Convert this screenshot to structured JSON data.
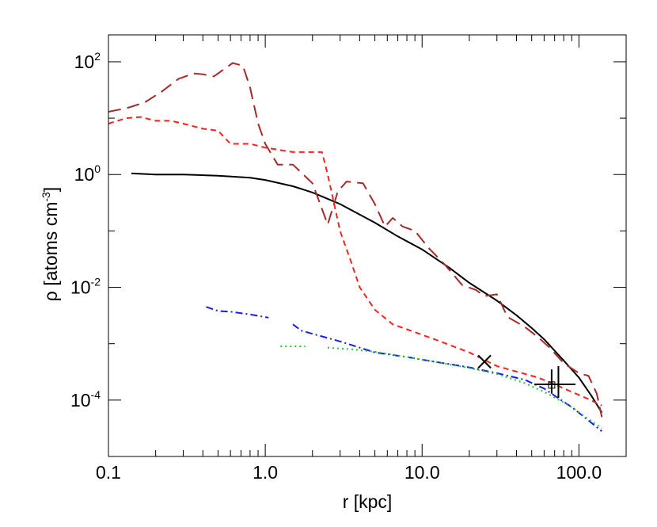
{
  "chart_data": {
    "type": "line",
    "xscale": "log",
    "yscale": "log",
    "xlim": [
      0.1,
      200
    ],
    "ylim": [
      1e-05,
      300
    ],
    "grid": false,
    "xlabel": "r [kpc]",
    "ylabel": {
      "base": "ρ [atoms cm",
      "sup": "-3",
      "end": "]"
    },
    "xticks": [
      {
        "value": 0.1,
        "label": "0.1"
      },
      {
        "value": 1,
        "label": "1.0"
      },
      {
        "value": 10,
        "label": "10.0"
      },
      {
        "value": 100,
        "label": "100.0"
      }
    ],
    "yticks": [
      {
        "value": 0.0001,
        "base": "10",
        "sup": "-4"
      },
      {
        "value": 0.01,
        "base": "10",
        "sup": "-2"
      },
      {
        "value": 1,
        "base": "10",
        "sup": "0"
      },
      {
        "value": 100,
        "base": "10",
        "sup": "2"
      }
    ],
    "series": [
      {
        "style": "solid",
        "color": "#000000",
        "width": 2,
        "segments": [
          [
            [
              0.14,
              1.05
            ],
            [
              0.2,
              1.0
            ],
            [
              0.25,
              1.0
            ],
            [
              0.3,
              1.0
            ],
            [
              0.5,
              0.95
            ],
            [
              0.8,
              0.88
            ],
            [
              1.0,
              0.8
            ],
            [
              1.5,
              0.62
            ],
            [
              2.0,
              0.48
            ],
            [
              3.0,
              0.3
            ],
            [
              5.0,
              0.14
            ],
            [
              7.0,
              0.08
            ],
            [
              10.0,
              0.047
            ],
            [
              15.0,
              0.022
            ],
            [
              20.0,
              0.012
            ],
            [
              30.0,
              0.0058
            ],
            [
              40.0,
              0.0032
            ],
            [
              50.0,
              0.0019
            ],
            [
              60.0,
              0.0012
            ],
            [
              70.0,
              0.00075
            ],
            [
              80.0,
              0.0005
            ],
            [
              100.0,
              0.00025
            ],
            [
              120.0,
              0.00012
            ],
            [
              140.0,
              6e-05
            ]
          ]
        ]
      },
      {
        "style": "longdash",
        "color": "#a52a2a",
        "width": 2,
        "segments": [
          [
            [
              0.1,
              13
            ],
            [
              0.13,
              15
            ],
            [
              0.17,
              19
            ],
            [
              0.22,
              30
            ],
            [
              0.28,
              50
            ],
            [
              0.35,
              62
            ],
            [
              0.4,
              60
            ],
            [
              0.47,
              55
            ],
            [
              0.55,
              75
            ],
            [
              0.62,
              95
            ],
            [
              0.72,
              85
            ],
            [
              0.8,
              35
            ],
            [
              0.9,
              8
            ],
            [
              1.0,
              3.5
            ],
            [
              1.2,
              1.5
            ],
            [
              1.5,
              1.5
            ],
            [
              2.0,
              0.7
            ],
            [
              2.5,
              0.13
            ],
            [
              2.9,
              0.5
            ],
            [
              3.3,
              0.75
            ],
            [
              4.2,
              0.7
            ],
            [
              5.0,
              0.3
            ],
            [
              5.8,
              0.12
            ],
            [
              6.5,
              0.17
            ],
            [
              7.5,
              0.12
            ],
            [
              9.0,
              0.1
            ],
            [
              11.0,
              0.05
            ],
            [
              14.0,
              0.025
            ],
            [
              18.0,
              0.011
            ],
            [
              22.0,
              0.009
            ],
            [
              25.0,
              0.007
            ],
            [
              30.0,
              0.0075
            ],
            [
              35.0,
              0.003
            ],
            [
              45.0,
              0.002
            ],
            [
              55.0,
              0.0013
            ],
            [
              65.0,
              0.00085
            ],
            [
              80.0,
              0.00045
            ],
            [
              100.0,
              0.0003
            ],
            [
              115.0,
              0.00027
            ],
            [
              130.0,
              0.00013
            ],
            [
              140.0,
              5e-05
            ]
          ]
        ]
      },
      {
        "style": "dash",
        "color": "#ff2020",
        "width": 2,
        "segments": [
          [
            [
              0.1,
              8
            ],
            [
              0.13,
              10
            ],
            [
              0.16,
              10.5
            ],
            [
              0.2,
              9
            ],
            [
              0.25,
              9
            ],
            [
              0.3,
              8
            ],
            [
              0.4,
              6.5
            ],
            [
              0.5,
              6
            ],
            [
              0.6,
              3.5
            ],
            [
              0.8,
              3.5
            ],
            [
              1.0,
              3
            ],
            [
              1.5,
              2.5
            ],
            [
              1.8,
              2.5
            ],
            [
              2.0,
              2.5
            ],
            [
              2.3,
              2.5
            ],
            [
              2.5,
              1.0
            ],
            [
              3.0,
              0.1
            ],
            [
              3.5,
              0.03
            ],
            [
              4.0,
              0.01
            ],
            [
              5.0,
              0.004
            ],
            [
              6.5,
              0.0022
            ],
            [
              8.0,
              0.0018
            ],
            [
              12.0,
              0.0012
            ],
            [
              20.0,
              0.0007
            ],
            [
              30.0,
              0.0004
            ],
            [
              40.0,
              0.00032
            ],
            [
              55.0,
              0.00025
            ],
            [
              70.0,
              0.00019
            ],
            [
              90.0,
              0.00014
            ],
            [
              110.0,
              0.00011
            ],
            [
              140.0,
              8e-05
            ]
          ]
        ]
      },
      {
        "style": "dashdot",
        "color": "#1a1aff",
        "width": 2,
        "segments": [
          [
            [
              0.42,
              0.0045
            ],
            [
              0.5,
              0.0038
            ],
            [
              0.6,
              0.0037
            ],
            [
              0.8,
              0.0033
            ],
            [
              1.05,
              0.0029
            ]
          ],
          [
            [
              1.5,
              0.0022
            ],
            [
              1.7,
              0.0017
            ],
            [
              2.0,
              0.0015
            ],
            [
              3.0,
              0.0011
            ],
            [
              5.0,
              0.0007
            ],
            [
              8.0,
              0.00058
            ],
            [
              12.0,
              0.00048
            ],
            [
              20.0,
              0.00038
            ],
            [
              30.0,
              0.0003
            ],
            [
              45.0,
              0.00023
            ],
            [
              60.0,
              0.00016
            ],
            [
              75.0,
              0.000105
            ],
            [
              90.0,
              7.5e-05
            ],
            [
              110.0,
              4.8e-05
            ],
            [
              140.0,
              2.8e-05
            ]
          ]
        ]
      },
      {
        "style": "dot",
        "color": "#22cc22",
        "width": 2,
        "segments": [
          [
            [
              1.25,
              0.0009
            ],
            [
              1.8,
              0.0009
            ]
          ],
          [
            [
              2.5,
              0.00085
            ],
            [
              3.5,
              0.0008
            ],
            [
              5.0,
              0.00072
            ],
            [
              8.0,
              0.00058
            ],
            [
              12.0,
              0.00048
            ],
            [
              20.0,
              0.00037
            ],
            [
              30.0,
              0.00029
            ],
            [
              45.0,
              0.0002
            ],
            [
              60.0,
              0.00014
            ],
            [
              75.0,
              0.0001
            ],
            [
              90.0,
              7.5e-05
            ],
            [
              110.0,
              5e-05
            ],
            [
              140.0,
              3.2e-05
            ]
          ]
        ]
      }
    ],
    "markers": [
      {
        "kind": "x",
        "x": 25,
        "y": 0.00048
      },
      {
        "kind": "errorcross",
        "x": 67,
        "y": 0.00019,
        "xerr": [
          52,
          95
        ],
        "yerr": [
          0.00013,
          0.00035
        ]
      },
      {
        "kind": "errorcross",
        "x": 74,
        "y": 0.00019,
        "xerr": [
          74,
          74
        ],
        "yerr": [
          0.00011,
          0.0004
        ]
      },
      {
        "kind": "square",
        "x": 67,
        "y": 0.000185
      }
    ]
  }
}
